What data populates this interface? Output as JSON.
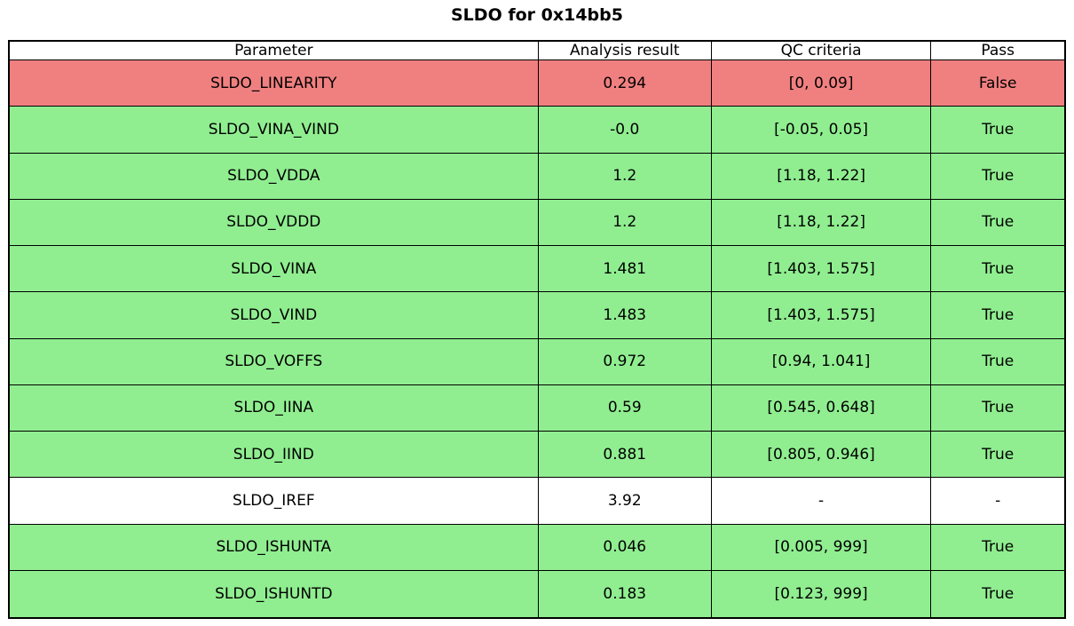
{
  "title": "SLDO for 0x14bb5",
  "colors": {
    "pass": "#90ee90",
    "fail": "#f08080",
    "neutral": "#ffffff",
    "border": "#000000",
    "text": "#000000",
    "background": "#ffffff"
  },
  "chart_data": {
    "type": "table",
    "title": "SLDO for 0x14bb5",
    "columns": [
      "Parameter",
      "Analysis result",
      "QC criteria",
      "Pass"
    ],
    "rows": [
      {
        "parameter": "SLDO_LINEARITY",
        "analysis_result": "0.294",
        "qc_criteria": "[0, 0.09]",
        "pass": "False",
        "status": "fail"
      },
      {
        "parameter": "SLDO_VINA_VIND",
        "analysis_result": "-0.0",
        "qc_criteria": "[-0.05, 0.05]",
        "pass": "True",
        "status": "pass"
      },
      {
        "parameter": "SLDO_VDDA",
        "analysis_result": "1.2",
        "qc_criteria": "[1.18, 1.22]",
        "pass": "True",
        "status": "pass"
      },
      {
        "parameter": "SLDO_VDDD",
        "analysis_result": "1.2",
        "qc_criteria": "[1.18, 1.22]",
        "pass": "True",
        "status": "pass"
      },
      {
        "parameter": "SLDO_VINA",
        "analysis_result": "1.481",
        "qc_criteria": "[1.403, 1.575]",
        "pass": "True",
        "status": "pass"
      },
      {
        "parameter": "SLDO_VIND",
        "analysis_result": "1.483",
        "qc_criteria": "[1.403, 1.575]",
        "pass": "True",
        "status": "pass"
      },
      {
        "parameter": "SLDO_VOFFS",
        "analysis_result": "0.972",
        "qc_criteria": "[0.94, 1.041]",
        "pass": "True",
        "status": "pass"
      },
      {
        "parameter": "SLDO_IINA",
        "analysis_result": "0.59",
        "qc_criteria": "[0.545, 0.648]",
        "pass": "True",
        "status": "pass"
      },
      {
        "parameter": "SLDO_IIND",
        "analysis_result": "0.881",
        "qc_criteria": "[0.805, 0.946]",
        "pass": "True",
        "status": "pass"
      },
      {
        "parameter": "SLDO_IREF",
        "analysis_result": "3.92",
        "qc_criteria": "-",
        "pass": "-",
        "status": "neutral"
      },
      {
        "parameter": "SLDO_ISHUNTA",
        "analysis_result": "0.046",
        "qc_criteria": "[0.005, 999]",
        "pass": "True",
        "status": "pass"
      },
      {
        "parameter": "SLDO_ISHUNTD",
        "analysis_result": "0.183",
        "qc_criteria": "[0.123, 999]",
        "pass": "True",
        "status": "pass"
      }
    ]
  }
}
